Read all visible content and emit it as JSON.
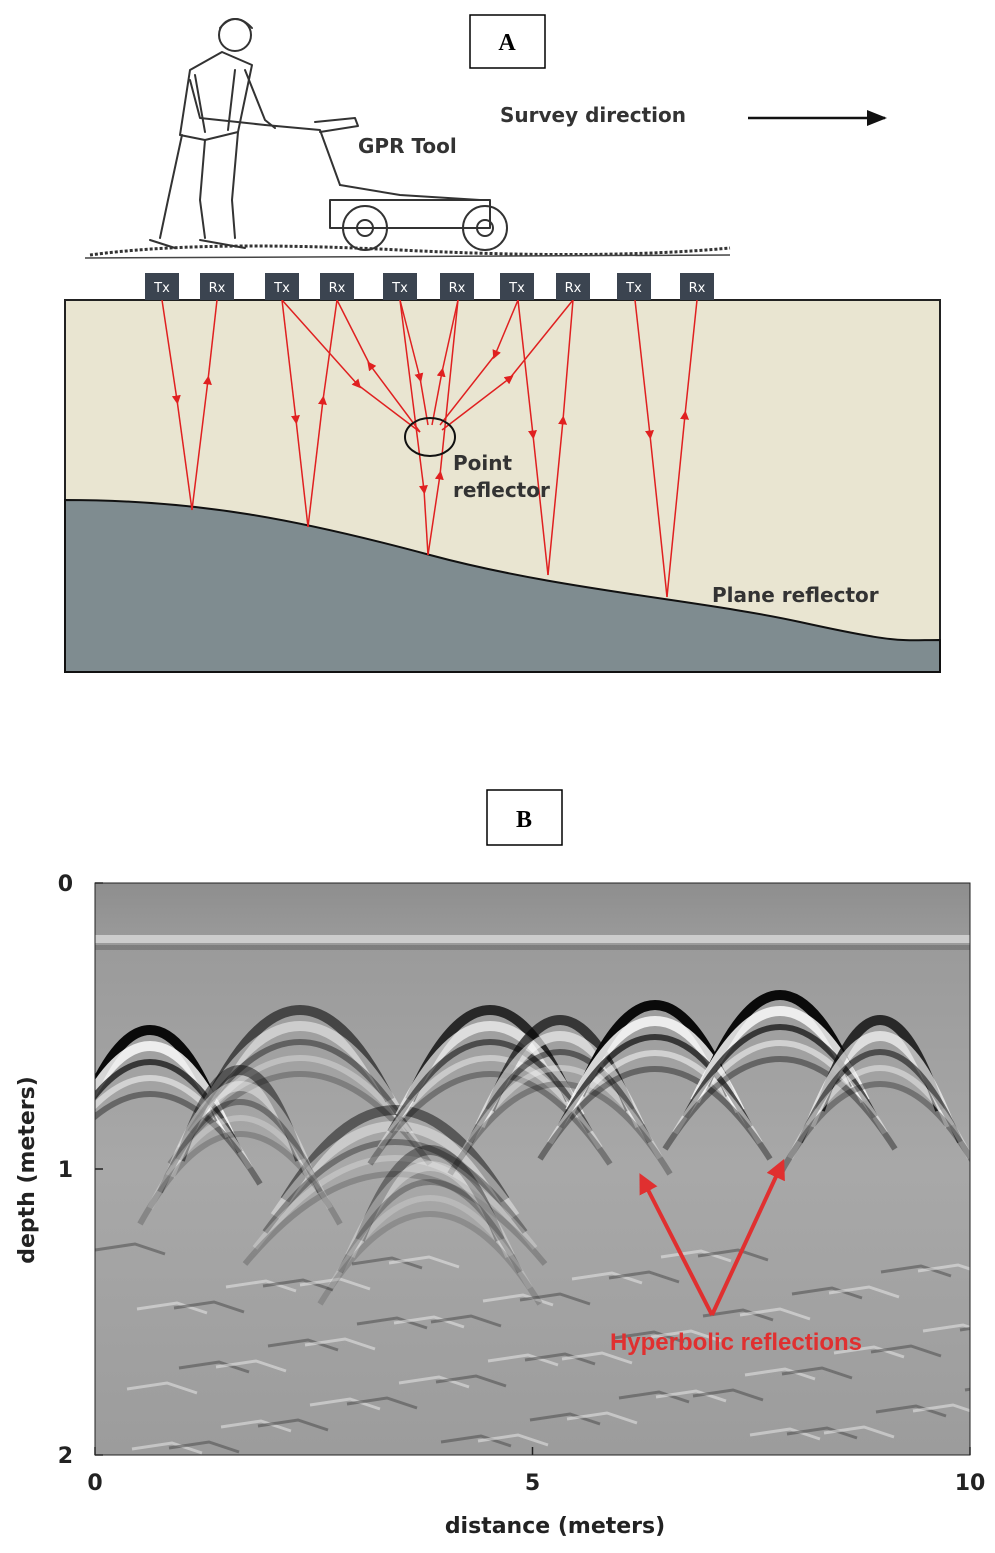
{
  "panel_a": {
    "label": "A",
    "survey_direction": "Survey direction",
    "tool": "GPR Tool",
    "antennas": [
      "Tx",
      "Rx",
      "Tx",
      "Rx",
      "Tx",
      "Rx",
      "Tx",
      "Rx",
      "Tx",
      "Rx"
    ],
    "point_reflector": [
      "Point",
      "reflector"
    ],
    "plane_reflector": "Plane reflector"
  },
  "panel_b": {
    "label": "B",
    "x_label": "distance (meters)",
    "y_label": "depth (meters)",
    "xlim": [
      0,
      10
    ],
    "ylim": [
      0,
      2
    ],
    "xticks": [
      0,
      5,
      10
    ],
    "yticks": [
      0,
      1,
      2
    ],
    "annotation": "Hyperbolic reflections"
  }
}
